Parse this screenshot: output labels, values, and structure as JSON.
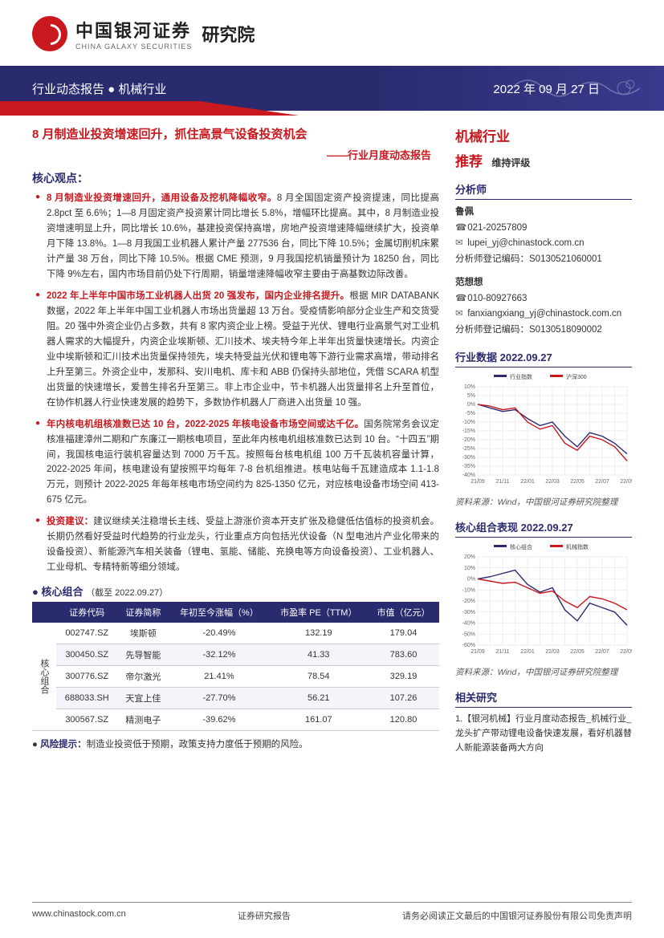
{
  "header": {
    "company_cn": "中国银河证券",
    "company_en": "CHINA GALAXY SECURITIES",
    "institute": "研究院"
  },
  "banner": {
    "left": "行业动态报告 ● 机械行业",
    "date": "2022 年 09 月 27 日"
  },
  "main": {
    "title": "8 月制造业投资增速回升，抓住高景气设备投资机会",
    "subtitle": "——行业月度动态报告",
    "core_head": "核心观点：",
    "points": [
      {
        "lead": "8 月制造业投资增速回升，通用设备及挖机降幅收窄。",
        "body": "8 月全国固定资产投资提速，同比提高 2.8pct 至 6.6%；1—8 月固定资产投资累计同比增长 5.8%，增幅环比提高。其中，8 月制造业投资增速明显上升，同比增长 10.6%，基建投资保持高增，房地产投资增速降幅继续扩大，投资单月下降 13.8%。1—8 月我国工业机器人累计产量 277536 台，同比下降 10.5%；金属切削机床累计产量 38 万台，同比下降 10.5%。根据 CME 预测，9 月我国挖机销量预计为 18250 台，同比下降 9%左右，国内市场目前仍处下行周期，销量增速降幅收窄主要由于高基数边际改善。"
      },
      {
        "lead": "2022 年上半年中国市场工业机器人出货 20 强发布，国内企业排名提升。",
        "body": "根据 MIR DATABANK 数据，2022 年上半年中国工业机器人市场出货量超 13 万台。受疫情影响部分企业生产和交货受阻。20 强中外资企业仍占多数，共有 8 家内资企业上榜。受益于光伏、锂电行业高景气对工业机器人需求的大幅提升，内资企业埃斯顿、汇川技术、埃夫特今年上半年出货量快速增长。内资企业中埃斯顿和汇川技术出货量保持领先，埃夫特受益光伏和锂电等下游行业需求高增，带动排名上升至第三。外资企业中，发那科、安川电机、库卡和 ABB 仍保持头部地位，凭借 SCARA 机型出货量的快速增长，爱普生排名升至第三。非上市企业中，节卡机器人出货量排名上升至首位，在协作机器人行业快速发展的趋势下，多数协作机器人厂商进入出货量 10 强。"
      },
      {
        "lead": "年内核电机组核准数已达 10 台，2022-2025 年核电设备市场空间或达千亿。",
        "body": "国务院常务会议定核准福建漳州二期和广东廉江一期核电项目，至此年内核电机组核准数已达到 10 台。“十四五”期间，我国核电运行装机容量达到 7000 万千瓦。按照每台核电机组 100 万千瓦装机容量计算，2022-2025 年间，核电建设有望按照平均每年 7-8 台机组推进。核电站每千瓦建造成本 1.1-1.8 万元，则预计 2022-2025 年每年核电市场空间约为 825-1350 亿元，对应核电设备市场空间 413-675 亿元。"
      },
      {
        "lead": "投资建议：",
        "body": "建议继续关注稳增长主线、受益上游涨价资本开支扩张及稳健低估值标的投资机会。长期仍然看好受益时代趋势的行业龙头，行业重点方向包括光伏设备（N 型电池片产业化带来的设备投资）、新能源汽车相关装备（锂电、氢能、储能、充换电等方向设备投资）、工业机器人、工业母机、专精特新等细分领域。"
      }
    ],
    "combo_head": "核心组合",
    "combo_date": "（截至 2022.09.27）",
    "table": {
      "row_group_label": "核心组合",
      "columns": [
        "证券代码",
        "证券简称",
        "年初至今涨幅（%）",
        "市盈率 PE（TTM）",
        "市值（亿元）"
      ],
      "rows": [
        [
          "002747.SZ",
          "埃斯顿",
          "-20.49%",
          "132.19",
          "179.04"
        ],
        [
          "300450.SZ",
          "先导智能",
          "-32.12%",
          "41.33",
          "783.60"
        ],
        [
          "300776.SZ",
          "帝尔激光",
          "21.41%",
          "78.54",
          "329.19"
        ],
        [
          "688033.SH",
          "天宜上佳",
          "-27.70%",
          "56.21",
          "107.26"
        ],
        [
          "300567.SZ",
          "精测电子",
          "-39.62%",
          "161.07",
          "120.80"
        ]
      ]
    },
    "risk_label": "风险提示：",
    "risk_body": "制造业投资低于预期，政策支持力度低于预期的风险。"
  },
  "side": {
    "industry": "机械行业",
    "rating_rec": "推荐",
    "rating_maintain": "维持评级",
    "analyst_head": "分析师",
    "analysts": [
      {
        "name": "鲁佩",
        "tel": "021-20257809",
        "mail": "lupei_yj@chinastock.com.cn",
        "cert": "分析师登记编码：S0130521060001"
      },
      {
        "name": "范想想",
        "tel": "010-80927663",
        "mail": "fanxiangxiang_yj@chinastock.com.cn",
        "cert": "分析师登记编码：S0130518090002"
      }
    ],
    "chart1_title": "行业数据 2022.09.27",
    "chart1": {
      "legend": [
        "行业指数",
        "沪深300"
      ],
      "colors": [
        "#2a2a6e",
        "#c9181e"
      ],
      "x_ticks": [
        "21/09",
        "21/10",
        "21/11",
        "21/12",
        "22/01",
        "22/02",
        "22/03",
        "22/04",
        "22/05",
        "22/06",
        "22/07",
        "22/08",
        "22/09"
      ],
      "ylim": [
        -40,
        10
      ],
      "y_ticks": [
        -40,
        -35,
        -30,
        -25,
        -20,
        -15,
        -10,
        -5,
        0,
        5,
        10
      ],
      "series1": [
        0,
        -2,
        -4,
        -3,
        -8,
        -12,
        -10,
        -18,
        -24,
        -16,
        -18,
        -22,
        -28
      ],
      "series2": [
        0,
        -1,
        -3,
        -2,
        -10,
        -14,
        -12,
        -22,
        -26,
        -18,
        -20,
        -24,
        -32
      ],
      "grid_color": "#dcdce8",
      "bg": "#ffffff",
      "font_size": 7
    },
    "chart1_source": "资料来源：Wind，中国银河证券研究院整理",
    "chart2_title": "核心组合表现 2022.09.27",
    "chart2": {
      "legend": [
        "核心组合",
        "机械指数"
      ],
      "colors": [
        "#2a2a6e",
        "#c9181e"
      ],
      "x_ticks": [
        "21/09",
        "21/10",
        "21/11",
        "21/12",
        "22/01",
        "22/02",
        "22/03",
        "22/04",
        "22/05",
        "22/06",
        "22/07",
        "22/08",
        "22/09"
      ],
      "ylim": [
        -60,
        20
      ],
      "y_ticks": [
        -60,
        -50,
        -40,
        -30,
        -20,
        -10,
        0,
        10,
        20
      ],
      "series1": [
        0,
        2,
        5,
        8,
        -5,
        -12,
        -8,
        -28,
        -38,
        -22,
        -26,
        -30,
        -42
      ],
      "series2": [
        0,
        -2,
        -4,
        -3,
        -8,
        -13,
        -11,
        -20,
        -26,
        -16,
        -18,
        -22,
        -28
      ],
      "grid_color": "#dcdce8",
      "bg": "#ffffff",
      "font_size": 7
    },
    "chart2_source": "资料来源：Wind，中国银河证券研究院整理",
    "related_head": "相关研究",
    "related_items": [
      "1.【银河机械】行业月度动态报告_机械行业_龙头扩产带动锂电设备快速发展，看好机器替人新能源装备两大方向"
    ]
  },
  "footer": {
    "left": "www.chinastock.com.cn",
    "center": "证券研究报告",
    "right": "请务必阅读正文最后的中国银河证券股份有限公司免责声明"
  }
}
